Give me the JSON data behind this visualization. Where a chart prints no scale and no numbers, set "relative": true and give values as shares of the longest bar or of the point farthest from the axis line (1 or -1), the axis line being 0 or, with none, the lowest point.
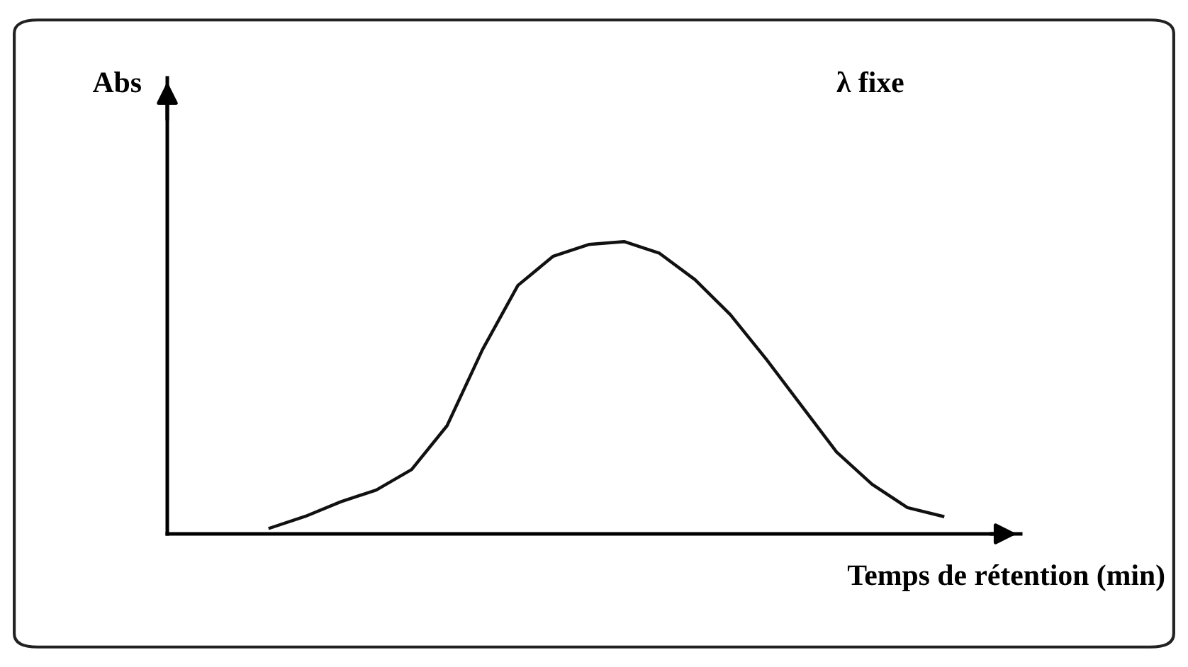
{
  "chart_data": {
    "type": "line",
    "relative": true,
    "xlabel": "Temps de rétention (min)",
    "annotations": [
      "Abs",
      "λ fixe"
    ],
    "categories": [
      null,
      null,
      null,
      null,
      null,
      null,
      null,
      null,
      null,
      null,
      null,
      null,
      null,
      null,
      null,
      null,
      null,
      null,
      null,
      null
    ],
    "series": [
      {
        "color": "#111111",
        "values": [
          0.02,
          0.06,
          0.11,
          0.15,
          0.22,
          0.37,
          0.63,
          0.85,
          0.95,
          0.99,
          1.0,
          0.96,
          0.87,
          0.75,
          0.6,
          0.44,
          0.28,
          0.17,
          0.09,
          0.06
        ]
      }
    ],
    "marker": "none",
    "line_style": "solid"
  }
}
